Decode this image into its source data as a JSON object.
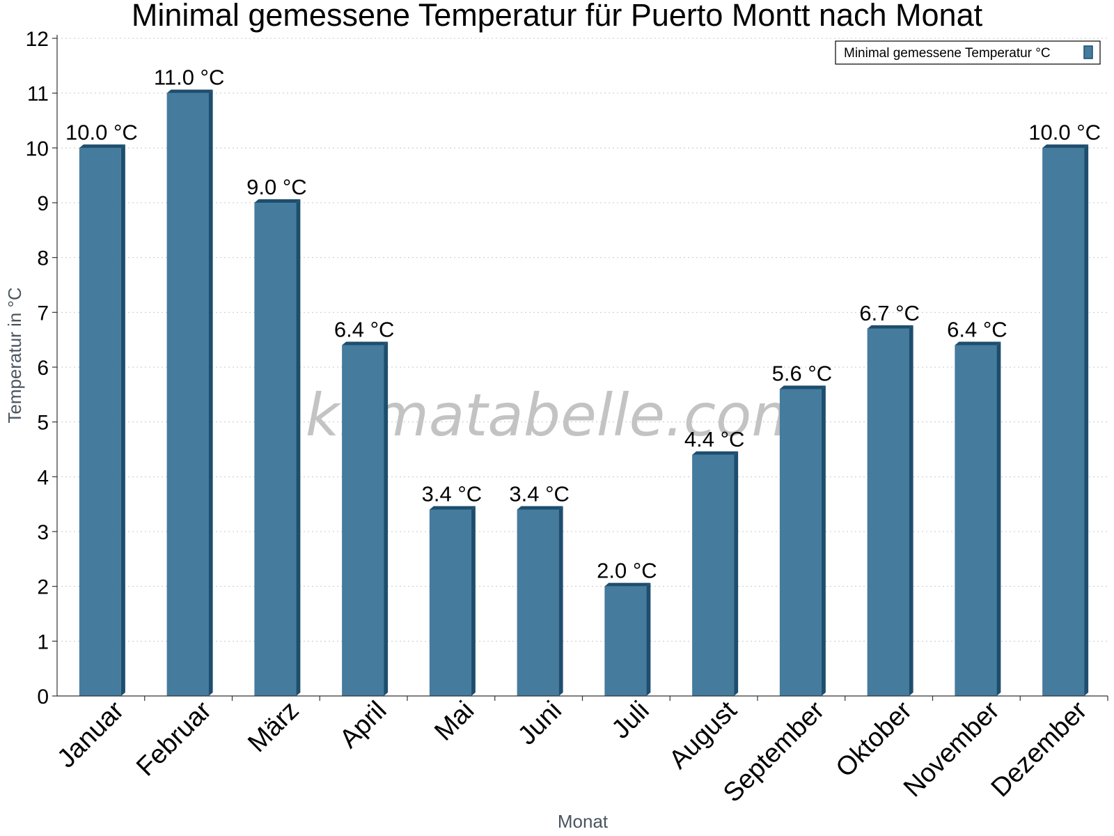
{
  "chart_data": {
    "type": "bar",
    "title": "Minimal gemessene Temperatur für Puerto Montt nach Monat",
    "xlabel": "Monat",
    "ylabel": "Temperatur in °C",
    "categories": [
      "Januar",
      "Februar",
      "März",
      "April",
      "Mai",
      "Juni",
      "Juli",
      "August",
      "September",
      "Oktober",
      "November",
      "Dezember"
    ],
    "series": [
      {
        "name": "Minimal gemessene Temperatur °C",
        "values": [
          10.0,
          11.0,
          9.0,
          6.4,
          3.4,
          3.4,
          2.0,
          4.4,
          5.6,
          6.7,
          6.4,
          10.0
        ],
        "labels": [
          "10.0 °C",
          "11.0 °C",
          "9.0 °C",
          "6.4 °C",
          "3.4 °C",
          "3.4 °C",
          "2.0 °C",
          "4.4 °C",
          "5.6 °C",
          "6.7 °C",
          "6.4 °C",
          "10.0 °C"
        ]
      }
    ],
    "ylim": [
      0,
      12
    ],
    "yticks": [
      0,
      1,
      2,
      3,
      4,
      5,
      6,
      7,
      8,
      9,
      10,
      11,
      12
    ],
    "grid": true,
    "legend": "top-right",
    "watermark": "klimatabelle.com",
    "colors": {
      "bar_face": "#457b9d",
      "bar_side": "#1d4e6e",
      "bar_top": "#1d4e6e",
      "grid": "#c8c8c8",
      "axis": "#333333"
    }
  }
}
